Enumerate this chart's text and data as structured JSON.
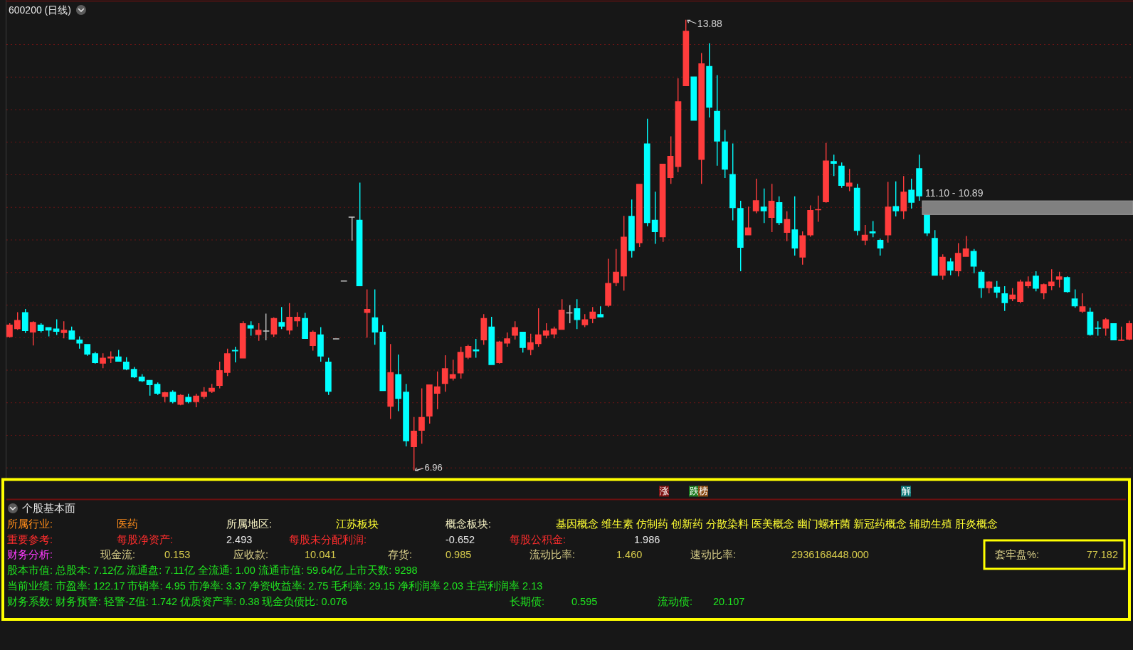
{
  "chart_data": [
    {
      "type": "candlestick",
      "title": "600200 (日线)",
      "categories": [
        null,
        null,
        null,
        null,
        null,
        null,
        null,
        null,
        null,
        null,
        null,
        null,
        null,
        null,
        null,
        null,
        null,
        null,
        null,
        null,
        null,
        null,
        null,
        null,
        null,
        null,
        null,
        null,
        null,
        null,
        null,
        null,
        null,
        null,
        null,
        null,
        null,
        null,
        null,
        null,
        null,
        null,
        null,
        null,
        null,
        null,
        null,
        null,
        null,
        null,
        null,
        null,
        null,
        null,
        null,
        null,
        null,
        null,
        null,
        null,
        null,
        null,
        null,
        null,
        null,
        null,
        null,
        null,
        null,
        null,
        null,
        null,
        null,
        null,
        null,
        null,
        null,
        null,
        null,
        null,
        null,
        null,
        null,
        null,
        null,
        null,
        null,
        null,
        null,
        null,
        null,
        null,
        null,
        null,
        null,
        null,
        null,
        null,
        null,
        null,
        null,
        null,
        null,
        null,
        null,
        null,
        null,
        null,
        null,
        null,
        null,
        null,
        null,
        null,
        null,
        null,
        null,
        null,
        null,
        null,
        null,
        null,
        null,
        null,
        null,
        null,
        null,
        null,
        null,
        null,
        null,
        null,
        null,
        null,
        null,
        null,
        null,
        null,
        null,
        null,
        null,
        null,
        null,
        null,
        null
      ],
      "ohlc": [
        [
          9.01,
          9.22,
          9.0,
          9.2
        ],
        [
          9.13,
          9.39,
          9.12,
          9.27
        ],
        [
          9.39,
          9.44,
          9.07,
          9.1
        ],
        [
          9.08,
          9.25,
          8.88,
          9.24
        ],
        [
          9.2,
          9.22,
          9.08,
          9.1
        ],
        [
          9.16,
          9.16,
          9.02,
          9.11
        ],
        [
          9.14,
          9.28,
          9.04,
          9.09
        ],
        [
          9.07,
          9.25,
          8.99,
          9.12
        ],
        [
          9.11,
          9.17,
          8.97,
          8.97
        ],
        [
          8.97,
          9.02,
          8.83,
          8.91
        ],
        [
          8.9,
          8.9,
          8.72,
          8.74
        ],
        [
          8.76,
          8.78,
          8.6,
          8.61
        ],
        [
          8.6,
          8.76,
          8.53,
          8.69
        ],
        [
          8.68,
          8.79,
          8.61,
          8.71
        ],
        [
          8.71,
          8.81,
          8.63,
          8.63
        ],
        [
          8.63,
          8.7,
          8.5,
          8.51
        ],
        [
          8.52,
          8.55,
          8.38,
          8.39
        ],
        [
          8.4,
          8.44,
          8.32,
          8.33
        ],
        [
          8.35,
          8.35,
          8.11,
          8.27
        ],
        [
          8.29,
          8.31,
          8.12,
          8.14
        ],
        [
          8.09,
          8.17,
          8.01,
          8.16
        ],
        [
          8.17,
          8.19,
          7.99,
          8.01
        ],
        [
          7.97,
          8.13,
          7.96,
          8.12
        ],
        [
          8.09,
          8.14,
          7.99,
          8.01
        ],
        [
          8.01,
          8.14,
          7.93,
          8.11
        ],
        [
          8.09,
          8.24,
          8.06,
          8.17
        ],
        [
          8.17,
          8.29,
          8.15,
          8.23
        ],
        [
          8.26,
          8.63,
          8.22,
          8.5
        ],
        [
          8.46,
          8.83,
          8.41,
          8.76
        ],
        [
          8.81,
          8.86,
          8.62,
          8.79
        ],
        [
          8.68,
          9.25,
          8.68,
          9.22
        ],
        [
          9.19,
          9.25,
          9.03,
          9.14
        ],
        [
          9.04,
          9.22,
          8.95,
          9.12
        ],
        [
          9.1,
          9.37,
          8.96,
          9.1
        ],
        [
          9.05,
          9.31,
          9.01,
          9.3
        ],
        [
          9.24,
          9.47,
          9.13,
          9.17
        ],
        [
          9.11,
          9.53,
          9.05,
          9.32
        ],
        [
          9.25,
          9.39,
          9.17,
          9.32
        ],
        [
          9.3,
          9.38,
          8.98,
          8.98
        ],
        [
          8.87,
          9.11,
          8.8,
          9.09
        ],
        [
          9.05,
          9.16,
          8.63,
          8.71
        ],
        [
          8.63,
          8.69,
          8.12,
          8.17
        ],
        [
          8.98,
          8.98,
          8.98,
          8.98
        ],
        [
          9.87,
          9.87,
          9.87,
          9.87
        ],
        [
          10.85,
          10.85,
          10.49,
          10.85
        ],
        [
          10.81,
          11.38,
          9.79,
          9.79
        ],
        [
          9.38,
          9.74,
          9.0,
          9.44
        ],
        [
          9.31,
          9.74,
          8.89,
          9.08
        ],
        [
          9.09,
          9.19,
          8.18,
          8.18
        ],
        [
          7.94,
          8.9,
          7.75,
          8.47
        ],
        [
          8.44,
          8.74,
          7.87,
          8.06
        ],
        [
          8.17,
          8.29,
          7.33,
          7.41
        ],
        [
          7.32,
          7.78,
          6.96,
          7.57
        ],
        [
          7.57,
          8.22,
          7.37,
          7.78
        ],
        [
          7.79,
          8.28,
          7.68,
          8.28
        ],
        [
          8.14,
          8.48,
          7.9,
          8.25
        ],
        [
          8.29,
          8.73,
          8.17,
          8.53
        ],
        [
          8.37,
          8.66,
          8.34,
          8.44
        ],
        [
          8.45,
          8.86,
          8.37,
          8.78
        ],
        [
          8.69,
          8.89,
          8.67,
          8.87
        ],
        [
          8.82,
          8.98,
          8.69,
          8.79
        ],
        [
          8.96,
          9.36,
          8.89,
          9.3
        ],
        [
          9.17,
          9.32,
          8.58,
          8.58
        ],
        [
          8.61,
          8.95,
          8.6,
          8.94
        ],
        [
          8.91,
          9.08,
          8.86,
          8.99
        ],
        [
          9.03,
          9.25,
          8.97,
          9.16
        ],
        [
          9.09,
          9.09,
          8.77,
          8.84
        ],
        [
          8.81,
          9.06,
          8.73,
          8.93
        ],
        [
          8.9,
          9.45,
          8.86,
          9.05
        ],
        [
          9.03,
          9.22,
          8.99,
          9.11
        ],
        [
          9.05,
          9.17,
          8.99,
          9.14
        ],
        [
          9.12,
          9.59,
          9.12,
          9.43
        ],
        [
          9.38,
          9.5,
          9.22,
          9.38
        ],
        [
          9.45,
          9.59,
          9.13,
          9.27
        ],
        [
          9.19,
          9.36,
          9.16,
          9.28
        ],
        [
          9.29,
          9.47,
          9.22,
          9.4
        ],
        [
          9.36,
          9.48,
          9.31,
          9.31
        ],
        [
          9.49,
          10.21,
          9.47,
          9.84
        ],
        [
          9.84,
          10.36,
          9.79,
          10.01
        ],
        [
          9.94,
          10.87,
          9.72,
          10.55
        ],
        [
          10.87,
          11.12,
          10.23,
          10.33
        ],
        [
          10.45,
          11.36,
          10.39,
          11.36
        ],
        [
          11.98,
          12.36,
          10.71,
          10.76
        ],
        [
          10.81,
          11.24,
          10.44,
          10.62
        ],
        [
          10.54,
          11.67,
          10.47,
          11.67
        ],
        [
          11.45,
          12.09,
          11.36,
          11.79
        ],
        [
          11.62,
          12.98,
          11.54,
          12.63
        ],
        [
          12.86,
          13.88,
          12.86,
          13.71
        ],
        [
          13.01,
          13.01,
          12.33,
          12.33
        ],
        [
          11.73,
          13.37,
          11.36,
          13.21
        ],
        [
          13.17,
          13.52,
          12.38,
          12.53
        ],
        [
          12.48,
          13.03,
          11.64,
          12.01
        ],
        [
          12.01,
          12.19,
          11.45,
          11.58
        ],
        [
          11.51,
          11.98,
          10.8,
          10.99
        ],
        [
          10.99,
          11.1,
          10.02,
          10.38
        ],
        [
          10.57,
          11.01,
          10.57,
          10.69
        ],
        [
          10.94,
          11.44,
          10.91,
          11.11
        ],
        [
          11.01,
          11.29,
          10.76,
          10.94
        ],
        [
          10.84,
          11.36,
          10.62,
          11.1
        ],
        [
          11.08,
          11.17,
          10.73,
          10.76
        ],
        [
          10.61,
          10.94,
          10.48,
          10.82
        ],
        [
          10.66,
          11.17,
          10.26,
          10.37
        ],
        [
          10.23,
          10.63,
          10.12,
          10.57
        ],
        [
          10.57,
          11.03,
          10.55,
          10.96
        ],
        [
          10.96,
          11.18,
          10.78,
          10.97
        ],
        [
          11.08,
          11.99,
          11.07,
          11.72
        ],
        [
          11.71,
          11.81,
          11.48,
          11.67
        ],
        [
          11.64,
          11.69,
          11.3,
          11.33
        ],
        [
          11.32,
          11.59,
          11.25,
          11.38
        ],
        [
          11.3,
          11.36,
          10.57,
          10.64
        ],
        [
          10.49,
          10.73,
          10.42,
          10.58
        ],
        [
          10.63,
          10.79,
          10.54,
          10.6
        ],
        [
          10.5,
          10.52,
          10.26,
          10.37
        ],
        [
          10.57,
          11.39,
          10.46,
          11.01
        ],
        [
          11.02,
          11.4,
          10.86,
          10.94
        ],
        [
          10.94,
          11.48,
          10.82,
          11.24
        ],
        [
          11.27,
          11.44,
          10.98,
          11.07
        ],
        [
          11.6,
          11.81,
          11.1,
          11.17
        ],
        [
          10.89,
          10.89,
          10.56,
          10.6
        ],
        [
          10.53,
          10.65,
          9.95,
          9.95
        ],
        [
          9.95,
          10.28,
          9.89,
          10.24
        ],
        [
          10.17,
          10.22,
          9.96,
          10.03
        ],
        [
          10.02,
          10.45,
          9.94,
          10.3
        ],
        [
          10.24,
          10.56,
          10.24,
          10.37
        ],
        [
          10.33,
          10.36,
          9.99,
          10.09
        ],
        [
          10.01,
          10.04,
          9.61,
          9.76
        ],
        [
          9.76,
          9.87,
          9.68,
          9.86
        ],
        [
          9.78,
          9.87,
          9.61,
          9.69
        ],
        [
          9.68,
          9.79,
          9.41,
          9.53
        ],
        [
          9.59,
          9.76,
          9.56,
          9.66
        ],
        [
          9.55,
          9.89,
          9.53,
          9.86
        ],
        [
          9.79,
          9.94,
          9.76,
          9.86
        ],
        [
          9.95,
          10.02,
          9.71,
          9.75
        ],
        [
          9.68,
          9.83,
          9.59,
          9.82
        ],
        [
          9.79,
          10.05,
          9.73,
          9.86
        ],
        [
          9.89,
          10.01,
          9.77,
          9.94
        ],
        [
          9.93,
          9.94,
          9.69,
          9.7
        ],
        [
          9.6,
          9.74,
          9.46,
          9.48
        ],
        [
          9.4,
          9.68,
          9.38,
          9.48
        ],
        [
          9.4,
          9.46,
          9.03,
          9.04
        ],
        [
          9.15,
          9.25,
          9.03,
          9.14
        ],
        [
          9.14,
          9.3,
          9.03,
          9.28
        ],
        [
          9.22,
          9.22,
          8.96,
          8.96
        ],
        [
          8.95,
          9.17,
          8.95,
          8.97
        ],
        [
          8.97,
          9.26,
          8.96,
          9.22
        ]
      ],
      "colors": [
        "#ff3c3c",
        "#ff3c3c",
        "#00ffff",
        "#ff3c3c",
        "#00ffff",
        "#00ffff",
        "#00ffff",
        "#ff3c3c",
        "#00ffff",
        "#00ffff",
        "#00ffff",
        "#00ffff",
        "#ff3c3c",
        "#ff3c3c",
        "#00ffff",
        "#00ffff",
        "#00ffff",
        "#00ffff",
        "#00ffff",
        "#00ffff",
        "#ff3c3c",
        "#00ffff",
        "#ff3c3c",
        "#00ffff",
        "#ff3c3c",
        "#ff3c3c",
        "#ff3c3c",
        "#ff3c3c",
        "#ff3c3c",
        "#00ffff",
        "#ff3c3c",
        "#00ffff",
        "#ff3c3c",
        "#c8c8c8",
        "#ff3c3c",
        "#00ffff",
        "#ff3c3c",
        "#ff3c3c",
        "#00ffff",
        "#ff3c3c",
        "#00ffff",
        "#00ffff",
        "#c8c8c8",
        "#c8c8c8",
        "#c8c8c8",
        "#00ffff",
        "#ff3c3c",
        "#00ffff",
        "#00ffff",
        "#ff3c3c",
        "#00ffff",
        "#00ffff",
        "#ff3c3c",
        "#ff3c3c",
        "#ff3c3c",
        "#ff3c3c",
        "#ff3c3c",
        "#ff3c3c",
        "#ff3c3c",
        "#ff3c3c",
        "#00ffff",
        "#ff3c3c",
        "#00ffff",
        "#ff3c3c",
        "#ff3c3c",
        "#ff3c3c",
        "#00ffff",
        "#ff3c3c",
        "#ff3c3c",
        "#ff3c3c",
        "#ff3c3c",
        "#ff3c3c",
        "#c8c8c8",
        "#00ffff",
        "#ff3c3c",
        "#ff3c3c",
        "#00ffff",
        "#ff3c3c",
        "#ff3c3c",
        "#ff3c3c",
        "#00ffff",
        "#ff3c3c",
        "#00ffff",
        "#00ffff",
        "#ff3c3c",
        "#ff3c3c",
        "#ff3c3c",
        "#ff3c3c",
        "#00ffff",
        "#ff3c3c",
        "#00ffff",
        "#00ffff",
        "#00ffff",
        "#00ffff",
        "#00ffff",
        "#ff3c3c",
        "#ff3c3c",
        "#00ffff",
        "#ff3c3c",
        "#00ffff",
        "#ff3c3c",
        "#00ffff",
        "#ff3c3c",
        "#ff3c3c",
        "#ff3c3c",
        "#ff3c3c",
        "#00ffff",
        "#00ffff",
        "#ff3c3c",
        "#00ffff",
        "#ff3c3c",
        "#00ffff",
        "#00ffff",
        "#ff3c3c",
        "#00ffff",
        "#ff3c3c",
        "#00ffff",
        "#00ffff",
        "#00ffff",
        "#00ffff",
        "#ff3c3c",
        "#00ffff",
        "#ff3c3c",
        "#ff3c3c",
        "#00ffff",
        "#00ffff",
        "#ff3c3c",
        "#00ffff",
        "#00ffff",
        "#ff3c3c",
        "#ff3c3c",
        "#ff3c3c",
        "#00ffff",
        "#ff3c3c",
        "#ff3c3c",
        "#ff3c3c",
        "#00ffff",
        "#00ffff",
        "#ff3c3c",
        "#00ffff",
        "#00ffff",
        "#ff3c3c",
        "#00ffff",
        "#ff3c3c",
        "#ff3c3c"
      ],
      "ylim": [
        6.86,
        14.14
      ],
      "yticks": [
        {
          "value": 7,
          "label": null
        },
        {
          "value": 7.5,
          "label": null
        },
        {
          "value": 8,
          "label": null
        },
        {
          "value": 8.5,
          "label": null
        },
        {
          "value": 9,
          "label": null
        },
        {
          "value": 9.5,
          "label": null
        },
        {
          "value": 10,
          "label": null
        },
        {
          "value": 10.5,
          "label": null
        },
        {
          "value": 11,
          "label": null
        },
        {
          "value": 11.5,
          "label": null
        },
        {
          "value": 12,
          "label": null
        },
        {
          "value": 12.5,
          "label": null
        },
        {
          "value": 13,
          "label": null
        },
        {
          "value": 13.5,
          "label": null
        }
      ],
      "grid": "y",
      "bands": [
        {
          "axis": "y",
          "from": 10.89,
          "to": 11.1,
          "label": "11.10 - 10.89",
          "color": "#808080"
        }
      ],
      "annotations": [
        "13.88",
        "6.96",
        "涨",
        "跌",
        "榜",
        "解"
      ]
    },
    {
      "type": "other",
      "title": "个股基本面",
      "annotations": [
        "所属行业:",
        "医药",
        "所属地区:",
        "江苏板块",
        "概念板块:",
        "基因概念 维生素 仿制药 创新药 分散染料 医美概念 幽门螺杆菌 新冠药概念 辅助生殖 肝炎概念",
        "重要参考:",
        "每股净资产:",
        "2.493",
        "每股未分配利润:",
        "-0.652",
        "每股公积金:",
        "1.986",
        "财务分析:",
        "现金流:",
        "0.153",
        "应收款:",
        "10.041",
        "存货:",
        "0.985",
        "流动比率:",
        "1.460",
        "速动比率:",
        "2936168448.000",
        "套牢盘%:",
        "77.182",
        "股本市值: 总股本: 7.12亿 流通盘: 7.11亿 全流通: 1.00 流通市值: 59.64亿 上市天数: 9298",
        "当前业绩: 市盈率: 122.17 市销率: 4.95 市净率: 3.37 净资收益率: 2.75 毛利率: 29.15 净利润率 2.03 主营利润率 2.13",
        "财务系数: 财务预警: 轻警-Z值: 1.742 优质资产率: 0.38 现金负债比: 0.076",
        "长期债:",
        "0.595",
        "流动债:",
        "20.107"
      ]
    }
  ]
}
